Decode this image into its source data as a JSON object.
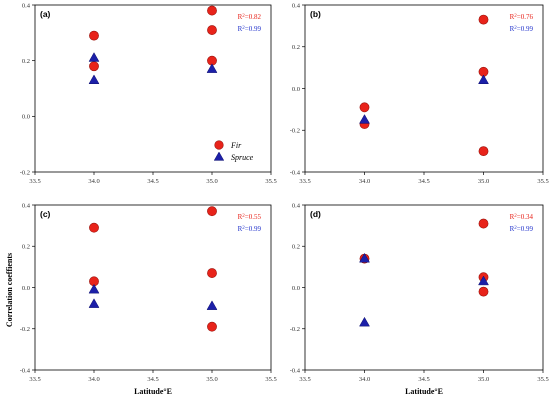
{
  "colors": {
    "fir": "#e8231a",
    "spruce": "#1c1fa8",
    "r2_fir": "#e8231a",
    "r2_spruce": "#2233cc"
  },
  "labels": {
    "x_axis": "Latitude°E",
    "y_axis": "Correlation coeffients",
    "legend_fir": "Fir",
    "legend_spruce": "Spruce"
  },
  "chart_data": [
    {
      "type": "scatter",
      "panel": "(a)",
      "xlim": [
        33.5,
        35.5
      ],
      "ylim": [
        -0.2,
        0.4
      ],
      "xticks": [
        "33.5",
        "34.0",
        "34.5",
        "35.0",
        "35.5"
      ],
      "yticks": [
        "-0.2",
        "0.0",
        "0.2",
        "0.4"
      ],
      "r2_fir": "R²=0.82",
      "r2_spruce": "R²=0.99",
      "series": [
        {
          "name": "Fir",
          "marker": "circle",
          "points": [
            [
              34.0,
              0.29
            ],
            [
              34.0,
              0.18
            ],
            [
              35.0,
              0.38
            ],
            [
              35.0,
              0.31
            ],
            [
              35.0,
              0.2
            ]
          ]
        },
        {
          "name": "Spruce",
          "marker": "triangle",
          "points": [
            [
              34.0,
              0.21
            ],
            [
              34.0,
              0.13
            ],
            [
              35.0,
              0.17
            ]
          ]
        }
      ],
      "legend": "bottom-right"
    },
    {
      "type": "scatter",
      "panel": "(b)",
      "xlim": [
        33.5,
        35.5
      ],
      "ylim": [
        -0.4,
        0.4
      ],
      "xticks": [
        "33.5",
        "34.0",
        "34.5",
        "35.0",
        "35.5"
      ],
      "yticks": [
        "-0.4",
        "-0.2",
        "0.0",
        "0.2",
        "0.4"
      ],
      "r2_fir": "R²=0.76",
      "r2_spruce": "R²=0.99",
      "series": [
        {
          "name": "Fir",
          "marker": "circle",
          "points": [
            [
              34.0,
              -0.09
            ],
            [
              34.0,
              -0.17
            ],
            [
              35.0,
              0.33
            ],
            [
              35.0,
              0.08
            ],
            [
              35.0,
              -0.3
            ]
          ]
        },
        {
          "name": "Spruce",
          "marker": "triangle",
          "points": [
            [
              34.0,
              -0.15
            ],
            [
              35.0,
              0.04
            ]
          ]
        }
      ]
    },
    {
      "type": "scatter",
      "panel": "(c)",
      "xlim": [
        33.5,
        35.5
      ],
      "ylim": [
        -0.4,
        0.4
      ],
      "xticks": [
        "33.5",
        "34.0",
        "34.5",
        "35.0",
        "35.5"
      ],
      "yticks": [
        "-0.4",
        "-0.2",
        "0.0",
        "0.2",
        "0.4"
      ],
      "r2_fir": "R²=0.55",
      "r2_spruce": "R²=0.99",
      "series": [
        {
          "name": "Fir",
          "marker": "circle",
          "points": [
            [
              34.0,
              0.29
            ],
            [
              34.0,
              0.03
            ],
            [
              35.0,
              0.37
            ],
            [
              35.0,
              0.07
            ],
            [
              35.0,
              -0.19
            ]
          ]
        },
        {
          "name": "Spruce",
          "marker": "triangle",
          "points": [
            [
              34.0,
              -0.01
            ],
            [
              34.0,
              -0.08
            ],
            [
              35.0,
              -0.09
            ]
          ]
        }
      ]
    },
    {
      "type": "scatter",
      "panel": "(d)",
      "xlim": [
        33.5,
        35.5
      ],
      "ylim": [
        -0.4,
        0.4
      ],
      "xticks": [
        "33.5",
        "34.0",
        "34.5",
        "35.0",
        "35.5"
      ],
      "yticks": [
        "-0.4",
        "-0.2",
        "0.0",
        "0.2",
        "0.4"
      ],
      "r2_fir": "R²=0.34",
      "r2_spruce": "R²=0.99",
      "series": [
        {
          "name": "Fir",
          "marker": "circle",
          "points": [
            [
              34.0,
              0.14
            ],
            [
              35.0,
              0.31
            ],
            [
              35.0,
              0.05
            ],
            [
              35.0,
              -0.02
            ]
          ]
        },
        {
          "name": "Spruce",
          "marker": "triangle",
          "points": [
            [
              34.0,
              0.14
            ],
            [
              34.0,
              -0.17
            ],
            [
              35.0,
              0.03
            ]
          ]
        }
      ]
    }
  ]
}
